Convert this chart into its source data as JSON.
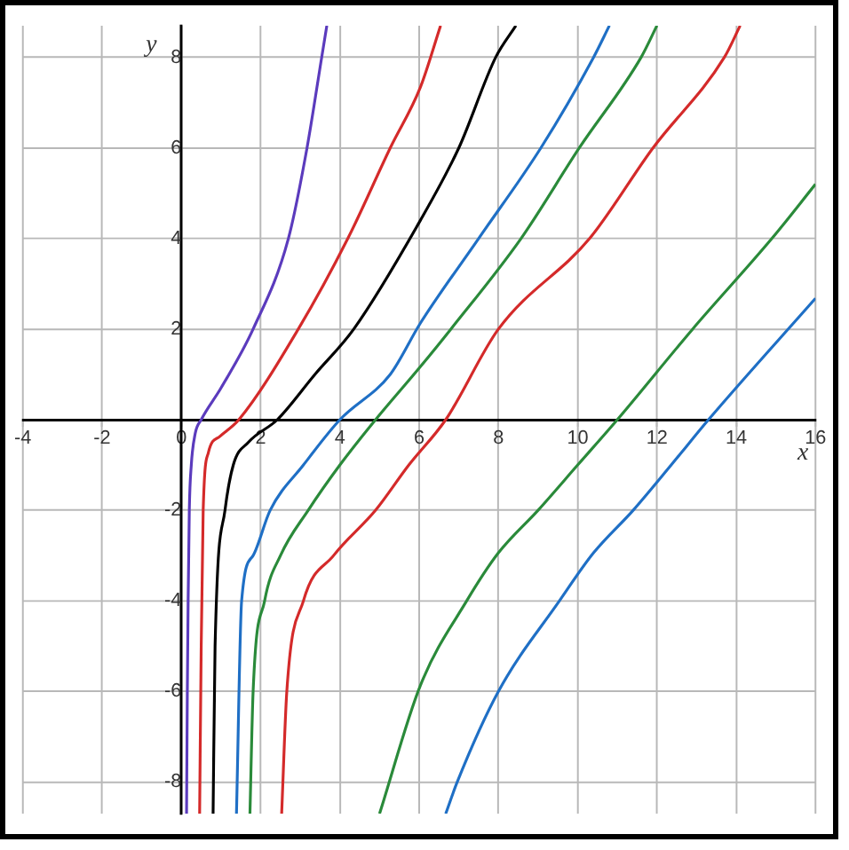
{
  "chart_data": {
    "type": "line",
    "xlabel": "x",
    "ylabel": "y",
    "xlim": [
      -4,
      16
    ],
    "ylim": [
      -8.7,
      8.7
    ],
    "xticks": [
      -4,
      -2,
      0,
      2,
      4,
      6,
      8,
      10,
      12,
      14,
      16
    ],
    "yticks": [
      -8,
      -6,
      -4,
      -2,
      {
        "value": 0,
        "label": null
      },
      2,
      4,
      6,
      8
    ],
    "grid": true,
    "legend": false,
    "marker": "none",
    "line_style": "solid",
    "series": [
      {
        "color": "#5b3bbd",
        "x": [
          0.13,
          0.15,
          0.17,
          0.2,
          0.25,
          0.35,
          0.5,
          1.0,
          1.81,
          2.7,
          3.17,
          3.54,
          3.67
        ],
        "values": [
          -8.7,
          -6,
          -4,
          -2,
          -1,
          -0.3,
          0,
          0.7,
          2,
          4,
          6,
          8,
          8.7
        ]
      },
      {
        "color": "#d42a2a",
        "x": [
          0.46,
          0.5,
          0.55,
          0.68,
          0.97,
          1.45,
          2.95,
          4.2,
          5.27,
          6.03,
          6.54
        ],
        "values": [
          -8.7,
          -5,
          -2,
          -0.73,
          -0.37,
          0,
          2,
          4,
          6,
          7.34,
          8.7
        ]
      },
      {
        "color": "#000000",
        "x": [
          0.8,
          0.85,
          1.1,
          1.31,
          1.69,
          2.42,
          3.37,
          4.35,
          6.03,
          7.0,
          7.93,
          8.44
        ],
        "values": [
          -8.7,
          -5,
          -2,
          -1,
          -0.5,
          0,
          1,
          2,
          4.4,
          6,
          8,
          8.7
        ]
      },
      {
        "color": "#1f6fc5",
        "x": [
          1.39,
          1.52,
          1.81,
          2.24,
          3.08,
          4.0,
          5.27,
          6.03,
          7.5,
          9.07,
          10.4,
          10.8
        ],
        "values": [
          -8.7,
          -4,
          -3,
          -2,
          -1,
          0,
          1,
          2.13,
          4,
          6,
          8,
          8.7
        ]
      },
      {
        "color": "#2a8a3a",
        "x": [
          1.73,
          1.81,
          2.1,
          2.5,
          3.2,
          4.0,
          4.9,
          6.03,
          6.8,
          8.57,
          10.04,
          11.6,
          12.0
        ],
        "values": [
          -8.7,
          -6,
          -4,
          -3,
          -2,
          -1,
          0,
          1.17,
          2,
          4,
          6,
          8,
          8.7
        ]
      },
      {
        "color": "#d42a2a",
        "x": [
          2.53,
          2.66,
          3.08,
          3.84,
          4.9,
          5.74,
          6.67,
          8.0,
          10.3,
          11.9,
          13.7,
          14.1
        ],
        "values": [
          -8.7,
          -6,
          -4,
          -3,
          -2,
          -1,
          0,
          2,
          4,
          6,
          8,
          8.7
        ]
      },
      {
        "color": "#2a8a3a",
        "x": [
          5.0,
          6.03,
          7.2,
          8.0,
          9.0,
          10.0,
          11.0,
          12.9,
          14.9,
          16
        ],
        "values": [
          -8.7,
          -5.87,
          -4,
          -2.94,
          -2,
          -1,
          0,
          2,
          4,
          5.2
        ]
      },
      {
        "color": "#1f6fc5",
        "x": [
          6.67,
          6.96,
          8.0,
          9.54,
          10.4,
          11.4,
          12.36,
          13.3,
          16
        ],
        "values": [
          -8.7,
          -8,
          -6,
          -4,
          -2.94,
          -2,
          -1,
          0,
          2.68
        ]
      }
    ]
  }
}
